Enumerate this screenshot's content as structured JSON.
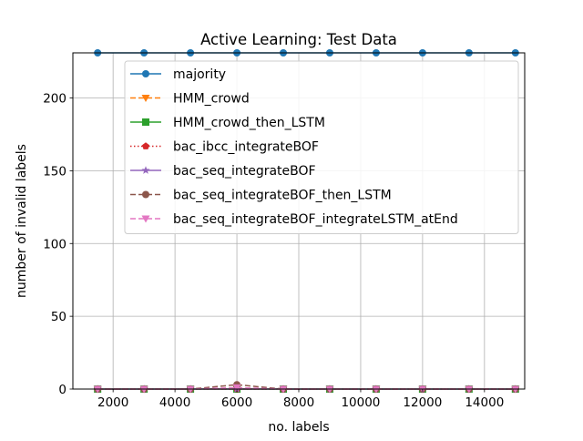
{
  "chart_data": {
    "type": "line",
    "title": "Active Learning: Test Data",
    "xlabel": "no. labels",
    "ylabel": "number of invalid labels",
    "xlim": [
      700,
      15300
    ],
    "ylim": [
      0,
      231
    ],
    "xticks": [
      2000,
      4000,
      6000,
      8000,
      10000,
      12000,
      14000
    ],
    "yticks": [
      0,
      50,
      100,
      150,
      200
    ],
    "grid": true,
    "legend_position": "upper right",
    "x": [
      1500,
      3000,
      4500,
      6000,
      7500,
      9000,
      10500,
      12000,
      13500,
      15000
    ],
    "series": [
      {
        "name": "majority",
        "color": "#1f77b4",
        "linestyle": "solid",
        "marker": "circle",
        "values": [
          231,
          231,
          231,
          231,
          231,
          231,
          231,
          231,
          231,
          231
        ]
      },
      {
        "name": "HMM_crowd",
        "color": "#ff7f0e",
        "linestyle": "dashed",
        "marker": "triangle-down",
        "values": [
          0,
          0,
          0,
          0,
          0,
          0,
          0,
          0,
          0,
          0
        ]
      },
      {
        "name": "HMM_crowd_then_LSTM",
        "color": "#2ca02c",
        "linestyle": "solid",
        "marker": "square",
        "values": [
          0,
          0,
          0,
          0,
          0,
          0,
          0,
          0,
          0,
          0
        ]
      },
      {
        "name": "bac_ibcc_integrateBOF",
        "color": "#d62728",
        "linestyle": "dotted",
        "marker": "pentagon",
        "values": [
          0,
          0,
          0,
          0,
          0,
          0,
          0,
          0,
          0,
          0
        ]
      },
      {
        "name": "bac_seq_integrateBOF",
        "color": "#9467bd",
        "linestyle": "solid",
        "marker": "star",
        "values": [
          0,
          0,
          0,
          0,
          0,
          0,
          0,
          0,
          0,
          0
        ]
      },
      {
        "name": "bac_seq_integrateBOF_then_LSTM",
        "color": "#8c564b",
        "linestyle": "dashed",
        "marker": "circle",
        "values": [
          0,
          0,
          0,
          3,
          0,
          0,
          0,
          0,
          0,
          0
        ]
      },
      {
        "name": "bac_seq_integrateBOF_integrateLSTM_atEnd",
        "color": "#e377c2",
        "linestyle": "dashed",
        "marker": "triangle-down",
        "values": [
          0,
          0,
          0,
          1,
          0,
          0,
          0,
          0,
          0,
          0
        ]
      }
    ]
  }
}
